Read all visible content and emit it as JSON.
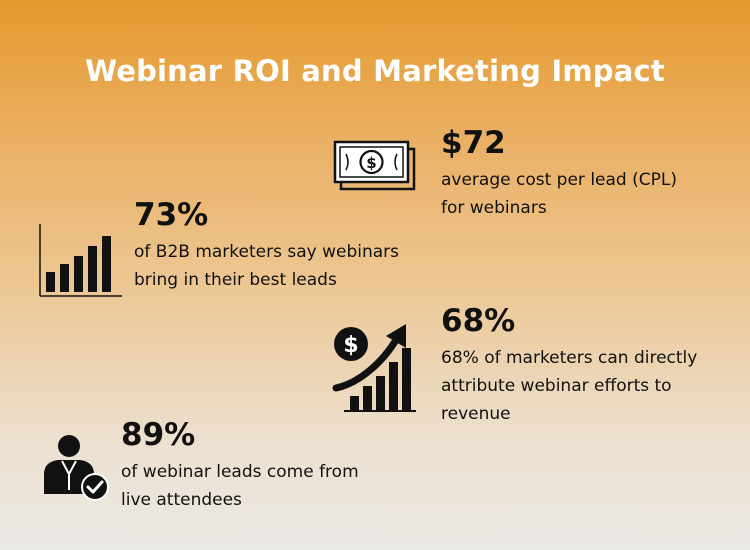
{
  "title": "Webinar ROI and Marketing Impact",
  "stats": [
    {
      "value": "$72",
      "lines": [
        "average cost per lead (CPL)",
        "for webinars"
      ],
      "icon": "money-bill-icon"
    },
    {
      "value": "73%",
      "lines": [
        "of B2B marketers say webinars",
        "bring in their best leads"
      ],
      "icon": "bar-chart-icon"
    },
    {
      "value": "68%",
      "lines": [
        "68% of marketers can directly",
        "attribute webinar efforts to",
        "revenue"
      ],
      "icon": "revenue-growth-icon"
    },
    {
      "value": "89%",
      "lines": [
        "of webinar leads come from",
        "live attendees"
      ],
      "icon": "person-check-icon"
    }
  ],
  "colors": {
    "title": "#ffffff",
    "text": "#111111",
    "gradient_top": "#e59a2e",
    "gradient_bottom": "#ebe9e6"
  }
}
